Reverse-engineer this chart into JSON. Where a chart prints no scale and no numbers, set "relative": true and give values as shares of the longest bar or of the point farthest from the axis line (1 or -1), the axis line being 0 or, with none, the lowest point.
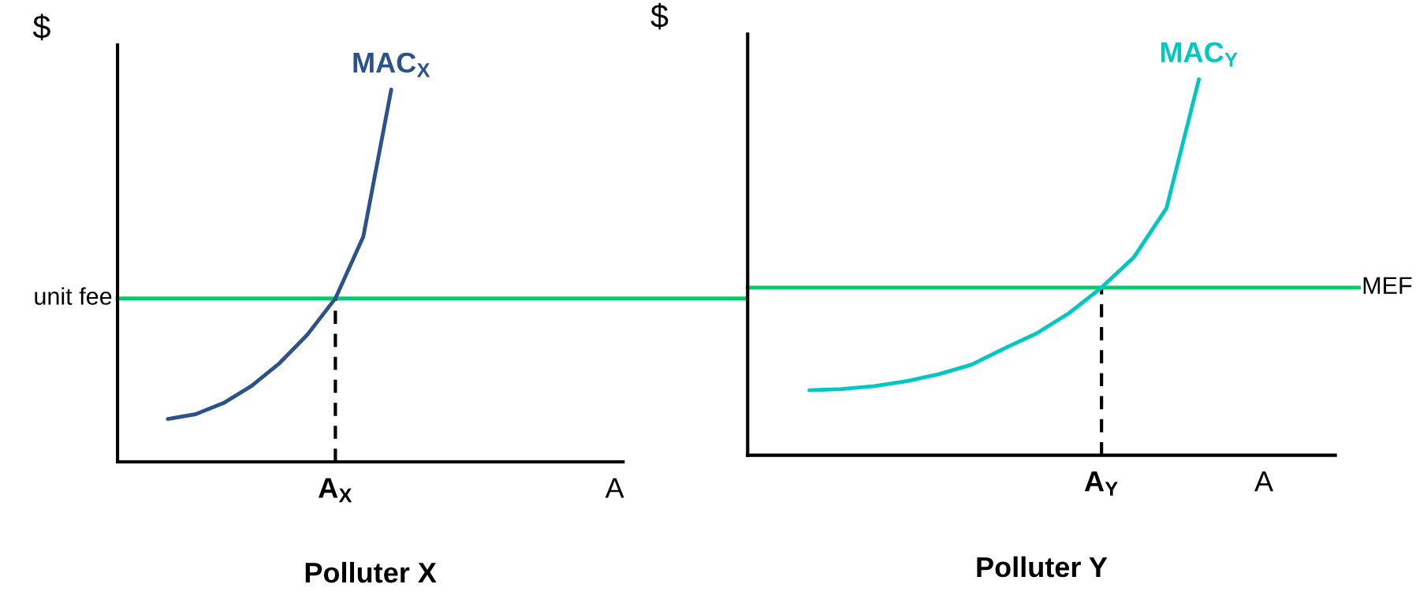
{
  "chart_data": [
    {
      "type": "line",
      "title": "Polluter X",
      "ylabel": "$",
      "relative": true,
      "legend": false,
      "categories": [
        null,
        null,
        null,
        null,
        null,
        null,
        "A$_{X}$",
        null,
        null,
        null,
        null,
        null,
        null,
        null,
        null,
        null,
        "A"
      ],
      "series": [
        {
          "name": "MAC$_{X}$",
          "color": "#2b5289",
          "values": [
            0.115,
            0.128,
            0.158,
            0.204,
            0.265,
            0.342,
            0.439,
            0.605,
            1.0,
            null,
            null,
            null,
            null,
            null,
            null,
            null,
            null
          ]
        }
      ],
      "ref_lines": [
        {
          "axis": "y",
          "value": 0.439,
          "label": "unit fee",
          "color": "#00cc66",
          "line_style": "solid"
        },
        {
          "axis": "x",
          "value": "A$_{X}$",
          "color": "#000000",
          "line_style": "dashed"
        }
      ]
    },
    {
      "type": "line",
      "title": "Polluter Y",
      "ylabel": "$",
      "relative": true,
      "legend": false,
      "categories": [
        null,
        null,
        null,
        null,
        null,
        null,
        null,
        null,
        null,
        "A$_{Y}$",
        null,
        null,
        null,
        null,
        "A"
      ],
      "series": [
        {
          "name": "MAC$_{Y}$",
          "color": "#00c8c0",
          "values": [
            0.173,
            0.176,
            0.184,
            0.197,
            0.216,
            0.241,
            0.284,
            0.324,
            0.378,
            0.446,
            0.527,
            0.657,
            1.0,
            null,
            null
          ]
        }
      ],
      "ref_lines": [
        {
          "axis": "y",
          "value": 0.446,
          "label": "MEF",
          "color": "#00cc66",
          "line_style": "solid"
        },
        {
          "axis": "x",
          "value": "A$_{Y}$",
          "color": "#000000",
          "line_style": "dashed"
        }
      ]
    }
  ]
}
